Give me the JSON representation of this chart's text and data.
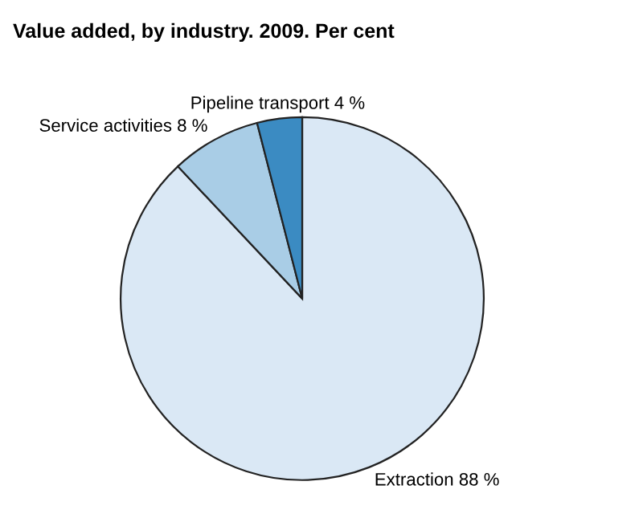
{
  "chart_data": {
    "type": "pie",
    "title": "Value added, by industry. 2009. Per cent",
    "categories": [
      "Extraction",
      "Service activities",
      "Pipeline transport"
    ],
    "values": [
      88,
      8,
      4
    ],
    "value_labels": [
      "88 %",
      "8 %",
      "4 %"
    ],
    "colors": [
      "#dae8f5",
      "#a9cde6",
      "#3b8bc2"
    ]
  }
}
